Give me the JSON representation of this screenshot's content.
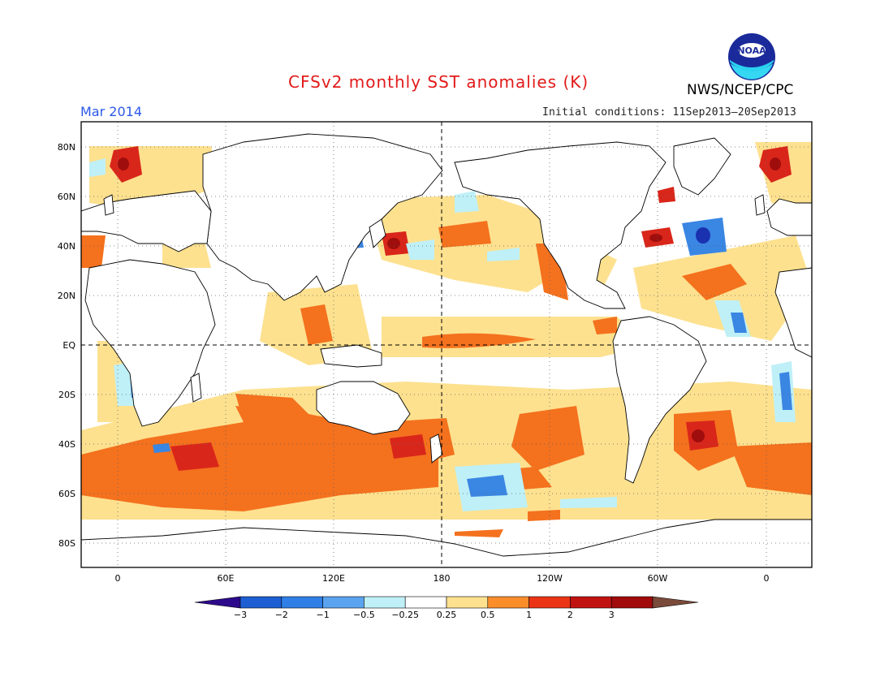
{
  "header": {
    "title": "CFSv2 monthly SST anomalies (K)",
    "valid_month": "Mar 2014",
    "initial_conditions": "Initial conditions: 11Sep2013–20Sep2013",
    "agency": "NWS/NCEP/CPC",
    "logo_text": "NOAA"
  },
  "map": {
    "projection": "cylindrical-equidistant",
    "lat_labels": [
      "80N",
      "60N",
      "40N",
      "20N",
      "EQ",
      "20S",
      "40S",
      "60S",
      "80S"
    ],
    "lon_labels": [
      "0",
      "60E",
      "120E",
      "180",
      "120W",
      "60W",
      "0"
    ],
    "reference_lines": [
      "equator-dashed",
      "dateline-dashed"
    ],
    "grid": "dotted"
  },
  "colorbar": {
    "levels": [
      "-3",
      "-2",
      "-1",
      "-0.5",
      "-0.25",
      "0.25",
      "0.5",
      "1",
      "2",
      "3"
    ],
    "colors": [
      "#2d0a8c",
      "#1d5fd3",
      "#2f7fe6",
      "#5aa3ee",
      "#bff0f7",
      "#ffffff",
      "#fde18f",
      "#fb8e2b",
      "#ea3415",
      "#c11212",
      "#a10b0b",
      "#7a4a3a"
    ]
  },
  "legend_colors": {
    "strong_warm": "#c81414",
    "warm": "#f46d1c",
    "weak_warm": "#fde18f",
    "weak_cool": "#bff0f7",
    "cool": "#3c86e6",
    "strong_cool": "#1d3fbf"
  }
}
